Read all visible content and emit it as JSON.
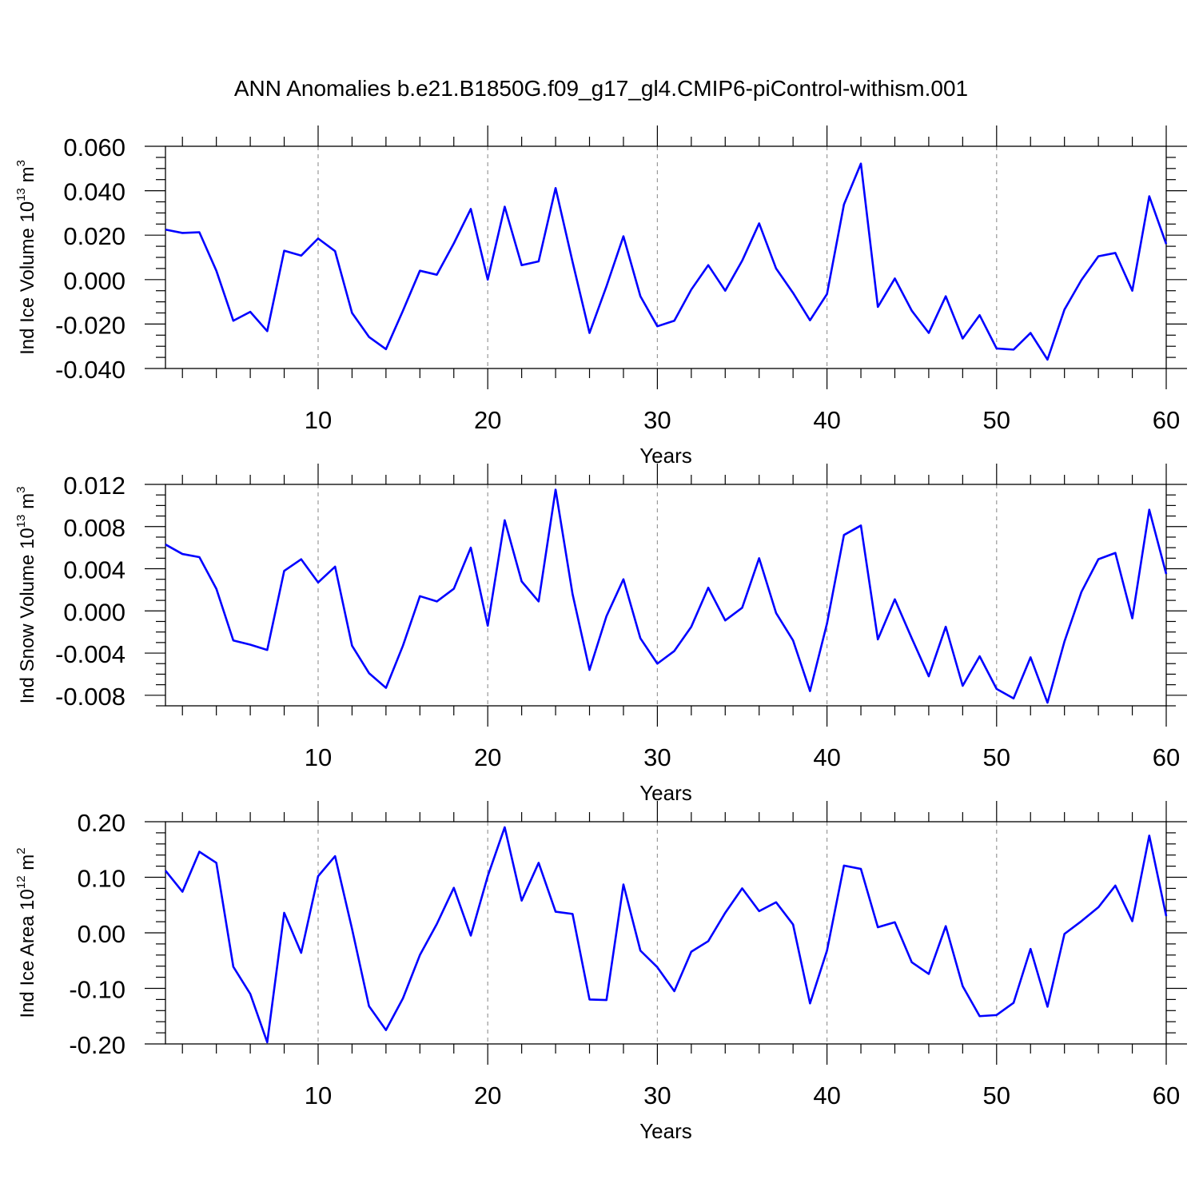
{
  "title": "ANN Anomalies b.e21.B1850G.f09_g17_gl4.CMIP6-piControl-withism.001",
  "colors": {
    "series": "#0000ff",
    "axes": "#000000",
    "grid": "#999999"
  },
  "chart_data": [
    {
      "type": "line",
      "ylabel": "Ind Ice Volume 10",
      "ylabel_exp": "13",
      "ylabel_unit": "m",
      "ylabel_unit_exp": "3",
      "xlabel": "Years",
      "xlim": [
        1,
        60
      ],
      "ylim": [
        -0.04,
        0.06
      ],
      "yticks": [
        -0.04,
        -0.02,
        0.0,
        0.02,
        0.04,
        0.06
      ],
      "ytick_labels": [
        "-0.040",
        "-0.020",
        "0.000",
        "0.020",
        "0.040",
        "0.060"
      ],
      "y_minor_step": 0.005,
      "xticks": [
        10,
        20,
        30,
        40,
        50,
        60
      ],
      "xtick_labels": [
        "10",
        "20",
        "30",
        "40",
        "50",
        "60"
      ],
      "x_minor_step": 2,
      "grid": "vertical dashed at major x ticks",
      "series": [
        {
          "name": "Ind Ice Volume",
          "values": [
            0.0225,
            0.021,
            0.0213,
            0.004,
            -0.0185,
            -0.0145,
            -0.0232,
            0.013,
            0.0108,
            0.0185,
            0.0128,
            -0.015,
            -0.0258,
            -0.0313,
            -0.014,
            0.004,
            0.0022,
            0.0163,
            0.0318,
            0.0,
            0.0328,
            0.0065,
            0.0082,
            0.0412,
            0.008,
            -0.024,
            -0.003,
            0.0195,
            -0.0075,
            -0.021,
            -0.0185,
            -0.0045,
            0.0065,
            -0.005,
            0.0085,
            0.0253,
            0.005,
            -0.006,
            -0.0183,
            -0.0065,
            0.0338,
            0.0522,
            -0.0123,
            0.0005,
            -0.014,
            -0.024,
            -0.0075,
            -0.0265,
            -0.016,
            -0.031,
            -0.0315,
            -0.024,
            -0.036,
            -0.0135,
            -0.0002,
            0.0105,
            0.012,
            -0.005,
            0.0375,
            0.016
          ]
        }
      ]
    },
    {
      "type": "line",
      "ylabel": "Ind Snow Volume 10",
      "ylabel_exp": "13",
      "ylabel_unit": "m",
      "ylabel_unit_exp": "3",
      "xlabel": "Years",
      "xlim": [
        1,
        60
      ],
      "ylim": [
        -0.009,
        0.012
      ],
      "yticks": [
        -0.008,
        -0.004,
        0.0,
        0.004,
        0.008,
        0.012
      ],
      "ytick_labels": [
        "-0.008",
        "-0.004",
        "0.000",
        "0.004",
        "0.008",
        "0.012"
      ],
      "y_minor_step": 0.001,
      "xticks": [
        10,
        20,
        30,
        40,
        50,
        60
      ],
      "xtick_labels": [
        "10",
        "20",
        "30",
        "40",
        "50",
        "60"
      ],
      "x_minor_step": 2,
      "grid": "vertical dashed at major x ticks",
      "series": [
        {
          "name": "Ind Snow Volume",
          "values": [
            0.0063,
            0.0054,
            0.0051,
            0.0021,
            -0.0028,
            -0.0032,
            -0.0037,
            0.0038,
            0.0049,
            0.0027,
            0.0042,
            -0.0033,
            -0.0059,
            -0.0073,
            -0.0033,
            0.0014,
            0.0009,
            0.0021,
            0.006,
            -0.0014,
            0.0086,
            0.0028,
            0.0009,
            0.0115,
            0.0016,
            -0.0056,
            -0.0005,
            0.003,
            -0.0026,
            -0.005,
            -0.0038,
            -0.0015,
            0.0022,
            -0.0009,
            0.0003,
            0.005,
            -0.0002,
            -0.0028,
            -0.0076,
            -0.0012,
            0.0072,
            0.0081,
            -0.0027,
            0.0011,
            -0.0026,
            -0.0062,
            -0.0015,
            -0.0071,
            -0.0043,
            -0.0074,
            -0.0083,
            -0.0044,
            -0.0087,
            -0.0029,
            0.0018,
            0.0049,
            0.0055,
            -0.0007,
            0.0096,
            0.0035
          ]
        }
      ]
    },
    {
      "type": "line",
      "ylabel": "Ind Ice Area 10",
      "ylabel_exp": "12",
      "ylabel_unit": "m",
      "ylabel_unit_exp": "2",
      "xlabel": "Years",
      "xlim": [
        1,
        60
      ],
      "ylim": [
        -0.2,
        0.2
      ],
      "yticks": [
        -0.2,
        -0.1,
        0.0,
        0.1,
        0.2
      ],
      "ytick_labels": [
        "-0.20",
        "-0.10",
        "0.00",
        "0.10",
        "0.20"
      ],
      "y_minor_step": 0.02,
      "xticks": [
        10,
        20,
        30,
        40,
        50,
        60
      ],
      "xtick_labels": [
        "10",
        "20",
        "30",
        "40",
        "50",
        "60"
      ],
      "x_minor_step": 2,
      "grid": "vertical dashed at major x ticks",
      "series": [
        {
          "name": "Ind Ice Area",
          "values": [
            0.112,
            0.074,
            0.146,
            0.126,
            -0.061,
            -0.11,
            -0.197,
            0.036,
            -0.036,
            0.102,
            0.138,
            0.007,
            -0.132,
            -0.175,
            -0.118,
            -0.04,
            0.016,
            0.081,
            -0.005,
            0.102,
            0.19,
            0.058,
            0.126,
            0.038,
            0.034,
            -0.12,
            -0.121,
            0.087,
            -0.032,
            -0.062,
            -0.105,
            -0.034,
            -0.015,
            0.036,
            0.08,
            0.039,
            0.055,
            0.015,
            -0.127,
            -0.032,
            0.121,
            0.115,
            0.01,
            0.019,
            -0.053,
            -0.074,
            0.012,
            -0.096,
            -0.15,
            -0.148,
            -0.126,
            -0.029,
            -0.133,
            -0.002,
            0.021,
            0.046,
            0.085,
            0.021,
            0.175,
            0.03
          ]
        }
      ]
    }
  ]
}
